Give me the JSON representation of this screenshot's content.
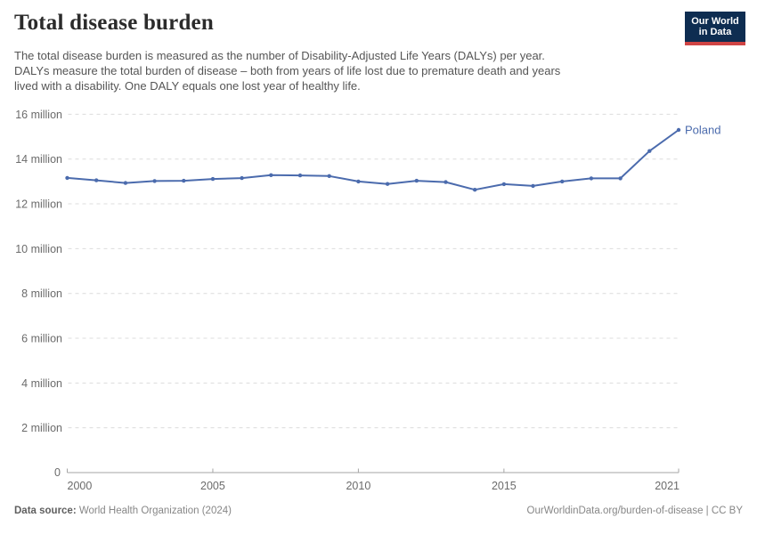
{
  "header": {
    "title": "Total disease burden",
    "logo": {
      "line1": "Our World",
      "line2": "in Data"
    }
  },
  "subtitle": "The total disease burden is measured as the number of Disability-Adjusted Life Years (DALYs) per year.\nDALYs measure the total burden of disease – both from years of life lost due to premature death and years\nlived with a disability. One DALY equals one lost year of healthy life.",
  "footer": {
    "source_label": "Data source:",
    "source_text": " World Health Organization (2024)",
    "right_text": "OurWorldinData.org/burden-of-disease | CC BY"
  },
  "colors": {
    "line": "#4b6bad",
    "series_label": "#4b6bad",
    "logo_bg": "#0e2d51",
    "logo_red": "#cf4444",
    "grid": "#dcdcdc",
    "axis": "#a5a5a5",
    "tick_text": "#6b6b6b",
    "title_text": "#2b2b2b",
    "subtitle_text": "#555555",
    "footer_text": "#878787",
    "footer_bold": "#5f5f5f"
  },
  "chart_data": {
    "type": "line",
    "title": "Total disease burden",
    "entity": "Poland",
    "unit": "million DALYs",
    "x": [
      2000,
      2001,
      2002,
      2003,
      2004,
      2005,
      2006,
      2007,
      2008,
      2009,
      2010,
      2011,
      2012,
      2013,
      2014,
      2015,
      2016,
      2017,
      2018,
      2019,
      2020,
      2021
    ],
    "series": [
      {
        "name": "Poland",
        "values": [
          13.16,
          13.05,
          12.93,
          13.02,
          13.03,
          13.11,
          13.15,
          13.28,
          13.27,
          13.24,
          13.0,
          12.89,
          13.03,
          12.97,
          12.63,
          12.88,
          12.8,
          13.0,
          13.14,
          13.14,
          14.36,
          15.3
        ]
      }
    ],
    "ylim": [
      0,
      16
    ],
    "yticks": [
      0,
      2,
      4,
      6,
      8,
      10,
      12,
      14,
      16
    ],
    "ytick_labels": [
      "0",
      "2 million",
      "4 million",
      "6 million",
      "8 million",
      "10 million",
      "12 million",
      "14 million",
      "16 million"
    ],
    "xticks": [
      2000,
      2005,
      2010,
      2015,
      2021
    ],
    "xtick_labels": [
      "2000",
      "2005",
      "2010",
      "2015",
      "2021"
    ],
    "grid": "horizontal-dashed",
    "legend": "line-end-label",
    "end_label": "Poland"
  }
}
